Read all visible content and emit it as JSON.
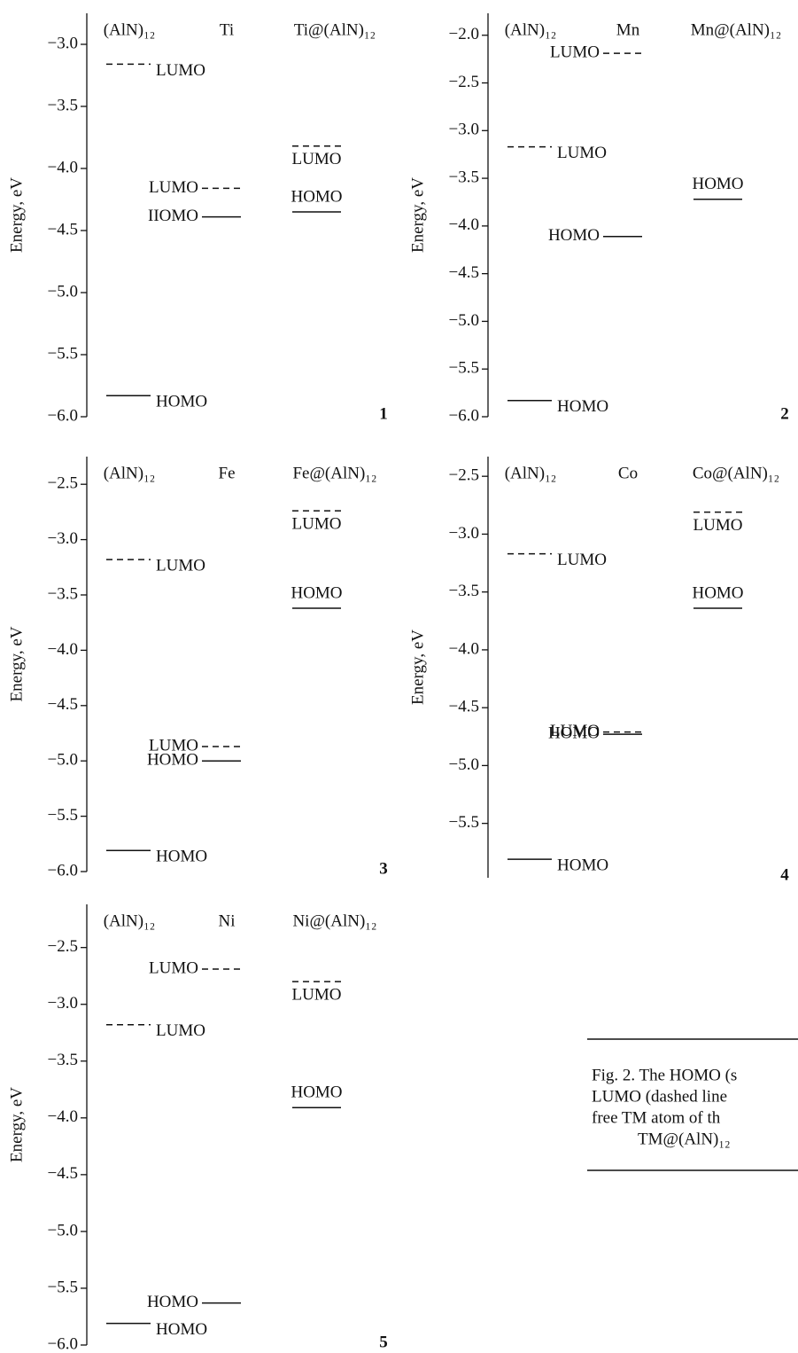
{
  "chart_data": [
    {
      "type": "levels",
      "number": "1",
      "ylabel": "Energy, eV",
      "ylim": [
        -6.0,
        -2.75
      ],
      "yticks": [
        {
          "value": -3.0,
          "label": "−3.0"
        },
        {
          "value": -3.5,
          "label": "−3.5"
        },
        {
          "value": -4.0,
          "label": "−4.0"
        },
        {
          "value": -4.5,
          "label": "−4.5"
        },
        {
          "value": -5.0,
          "label": "−5.0"
        },
        {
          "value": -5.5,
          "label": "−5.5"
        },
        {
          "value": -6.0,
          "label": "−6.0"
        }
      ],
      "series": [
        {
          "name": "(AlN)₁₂",
          "lumo": -3.16,
          "lumo_label": "LUMO",
          "homo": -5.83,
          "homo_label": "HOMO"
        },
        {
          "name": "Ti",
          "lumo": -4.16,
          "lumo_label": "LUMO",
          "homo": -4.39,
          "homo_label": "IIOMO"
        },
        {
          "name": "Ti@(AlN)₁₂",
          "lumo": -3.82,
          "lumo_label": "LUMO",
          "homo": -4.35,
          "homo_label": "HOMO"
        }
      ]
    },
    {
      "type": "levels",
      "number": "2",
      "ylabel": "Energy, eV",
      "ylim": [
        -6.0,
        -1.77
      ],
      "yticks": [
        {
          "value": -2.0,
          "label": "−2.0"
        },
        {
          "value": -2.5,
          "label": "−2.5"
        },
        {
          "value": -3.0,
          "label": "−3.0"
        },
        {
          "value": -3.5,
          "label": "−3.5"
        },
        {
          "value": -4.0,
          "label": "−4.0"
        },
        {
          "value": -4.5,
          "label": "−4.5"
        },
        {
          "value": -5.0,
          "label": "−5.0"
        },
        {
          "value": -5.5,
          "label": "−5.5"
        },
        {
          "value": -6.0,
          "label": "−6.0"
        }
      ],
      "series": [
        {
          "name": "(AlN)₁₂",
          "lumo": -3.17,
          "lumo_label": "LUMO",
          "homo": -5.83,
          "homo_label": "HOMO"
        },
        {
          "name": "Mn",
          "lumo": -2.19,
          "lumo_label": "LUMO",
          "homo": -4.11,
          "homo_label": "HOMO"
        },
        {
          "name": "Mn@(AlN)₁₂",
          "homo": -3.72,
          "homo_label": "HOMO"
        }
      ]
    },
    {
      "type": "levels",
      "number": "3",
      "ylabel": "Energy, eV",
      "ylim": [
        -6.0,
        -2.25
      ],
      "yticks": [
        {
          "value": -2.5,
          "label": "−2.5"
        },
        {
          "value": -3.0,
          "label": "−3.0"
        },
        {
          "value": -3.5,
          "label": "−3.5"
        },
        {
          "value": -4.0,
          "label": "−4.0"
        },
        {
          "value": -4.5,
          "label": "−4.5"
        },
        {
          "value": -5.0,
          "label": "−5.0"
        },
        {
          "value": -5.5,
          "label": "−5.5"
        },
        {
          "value": -6.0,
          "label": "−6.0"
        }
      ],
      "series": [
        {
          "name": "(AlN)₁₂",
          "lumo": -3.18,
          "lumo_label": "LUMO",
          "homo": -5.81,
          "homo_label": "HOMO"
        },
        {
          "name": "Fe",
          "lumo": -4.87,
          "lumo_label": "LUMO",
          "homo": -5.0,
          "homo_label": "HOMO"
        },
        {
          "name": "Fe@(AlN)₁₂",
          "lumo": -2.74,
          "lumo_label": "LUMO",
          "homo": -3.62,
          "homo_label": "HOMO"
        }
      ]
    },
    {
      "type": "levels",
      "number": "4",
      "ylabel": "Energy, eV",
      "ylim": [
        -5.97,
        -2.33
      ],
      "yticks": [
        {
          "value": -2.5,
          "label": "−2.5"
        },
        {
          "value": -3.0,
          "label": "−3.0"
        },
        {
          "value": -3.5,
          "label": "−3.5"
        },
        {
          "value": -4.0,
          "label": "−4.0"
        },
        {
          "value": -4.5,
          "label": "−4.5"
        },
        {
          "value": -5.0,
          "label": "−5.0"
        },
        {
          "value": -5.5,
          "label": "−5.5"
        }
      ],
      "series": [
        {
          "name": "(AlN)₁₂",
          "lumo": -3.17,
          "lumo_label": "LUMO",
          "homo": -5.81,
          "homo_label": "HOMO"
        },
        {
          "name": "Co",
          "lumo": -4.71,
          "lumo_label": "LUMO",
          "homo": -4.73,
          "homo_label": "HOMO"
        },
        {
          "name": "Co@(AlN)₁₂",
          "lumo": -2.81,
          "lumo_label": "LUMO",
          "homo": -3.64,
          "homo_label": "HOMO"
        }
      ]
    },
    {
      "type": "levels",
      "number": "5",
      "ylabel": "Energy, eV",
      "ylim": [
        -6.0,
        -2.12
      ],
      "yticks": [
        {
          "value": -2.5,
          "label": "−2.5"
        },
        {
          "value": -3.0,
          "label": "−3.0"
        },
        {
          "value": -3.5,
          "label": "−3.5"
        },
        {
          "value": -4.0,
          "label": "−4.0"
        },
        {
          "value": -4.5,
          "label": "−4.5"
        },
        {
          "value": -5.0,
          "label": "−5.0"
        },
        {
          "value": -5.5,
          "label": "−5.5"
        },
        {
          "value": -6.0,
          "label": "−6.0"
        }
      ],
      "series": [
        {
          "name": "(AlN)₁₂",
          "lumo": -3.18,
          "lumo_label": "LUMO",
          "homo": -5.81,
          "homo_label": "HOMO"
        },
        {
          "name": "Ni",
          "lumo": -2.69,
          "lumo_label": "LUMO",
          "homo": -5.63,
          "homo_label": "HOMO"
        },
        {
          "name": "Ni@(AlN)₁₂",
          "lumo": -2.8,
          "lumo_label": "LUMO",
          "homo": -3.91,
          "homo_label": "HOMO"
        }
      ]
    }
  ],
  "caption": {
    "lines": [
      "Fig. 2. The HOMO (s",
      "LUMO (dashed line",
      "free TM atom of th",
      "TM@(AlN)₁₂"
    ]
  }
}
